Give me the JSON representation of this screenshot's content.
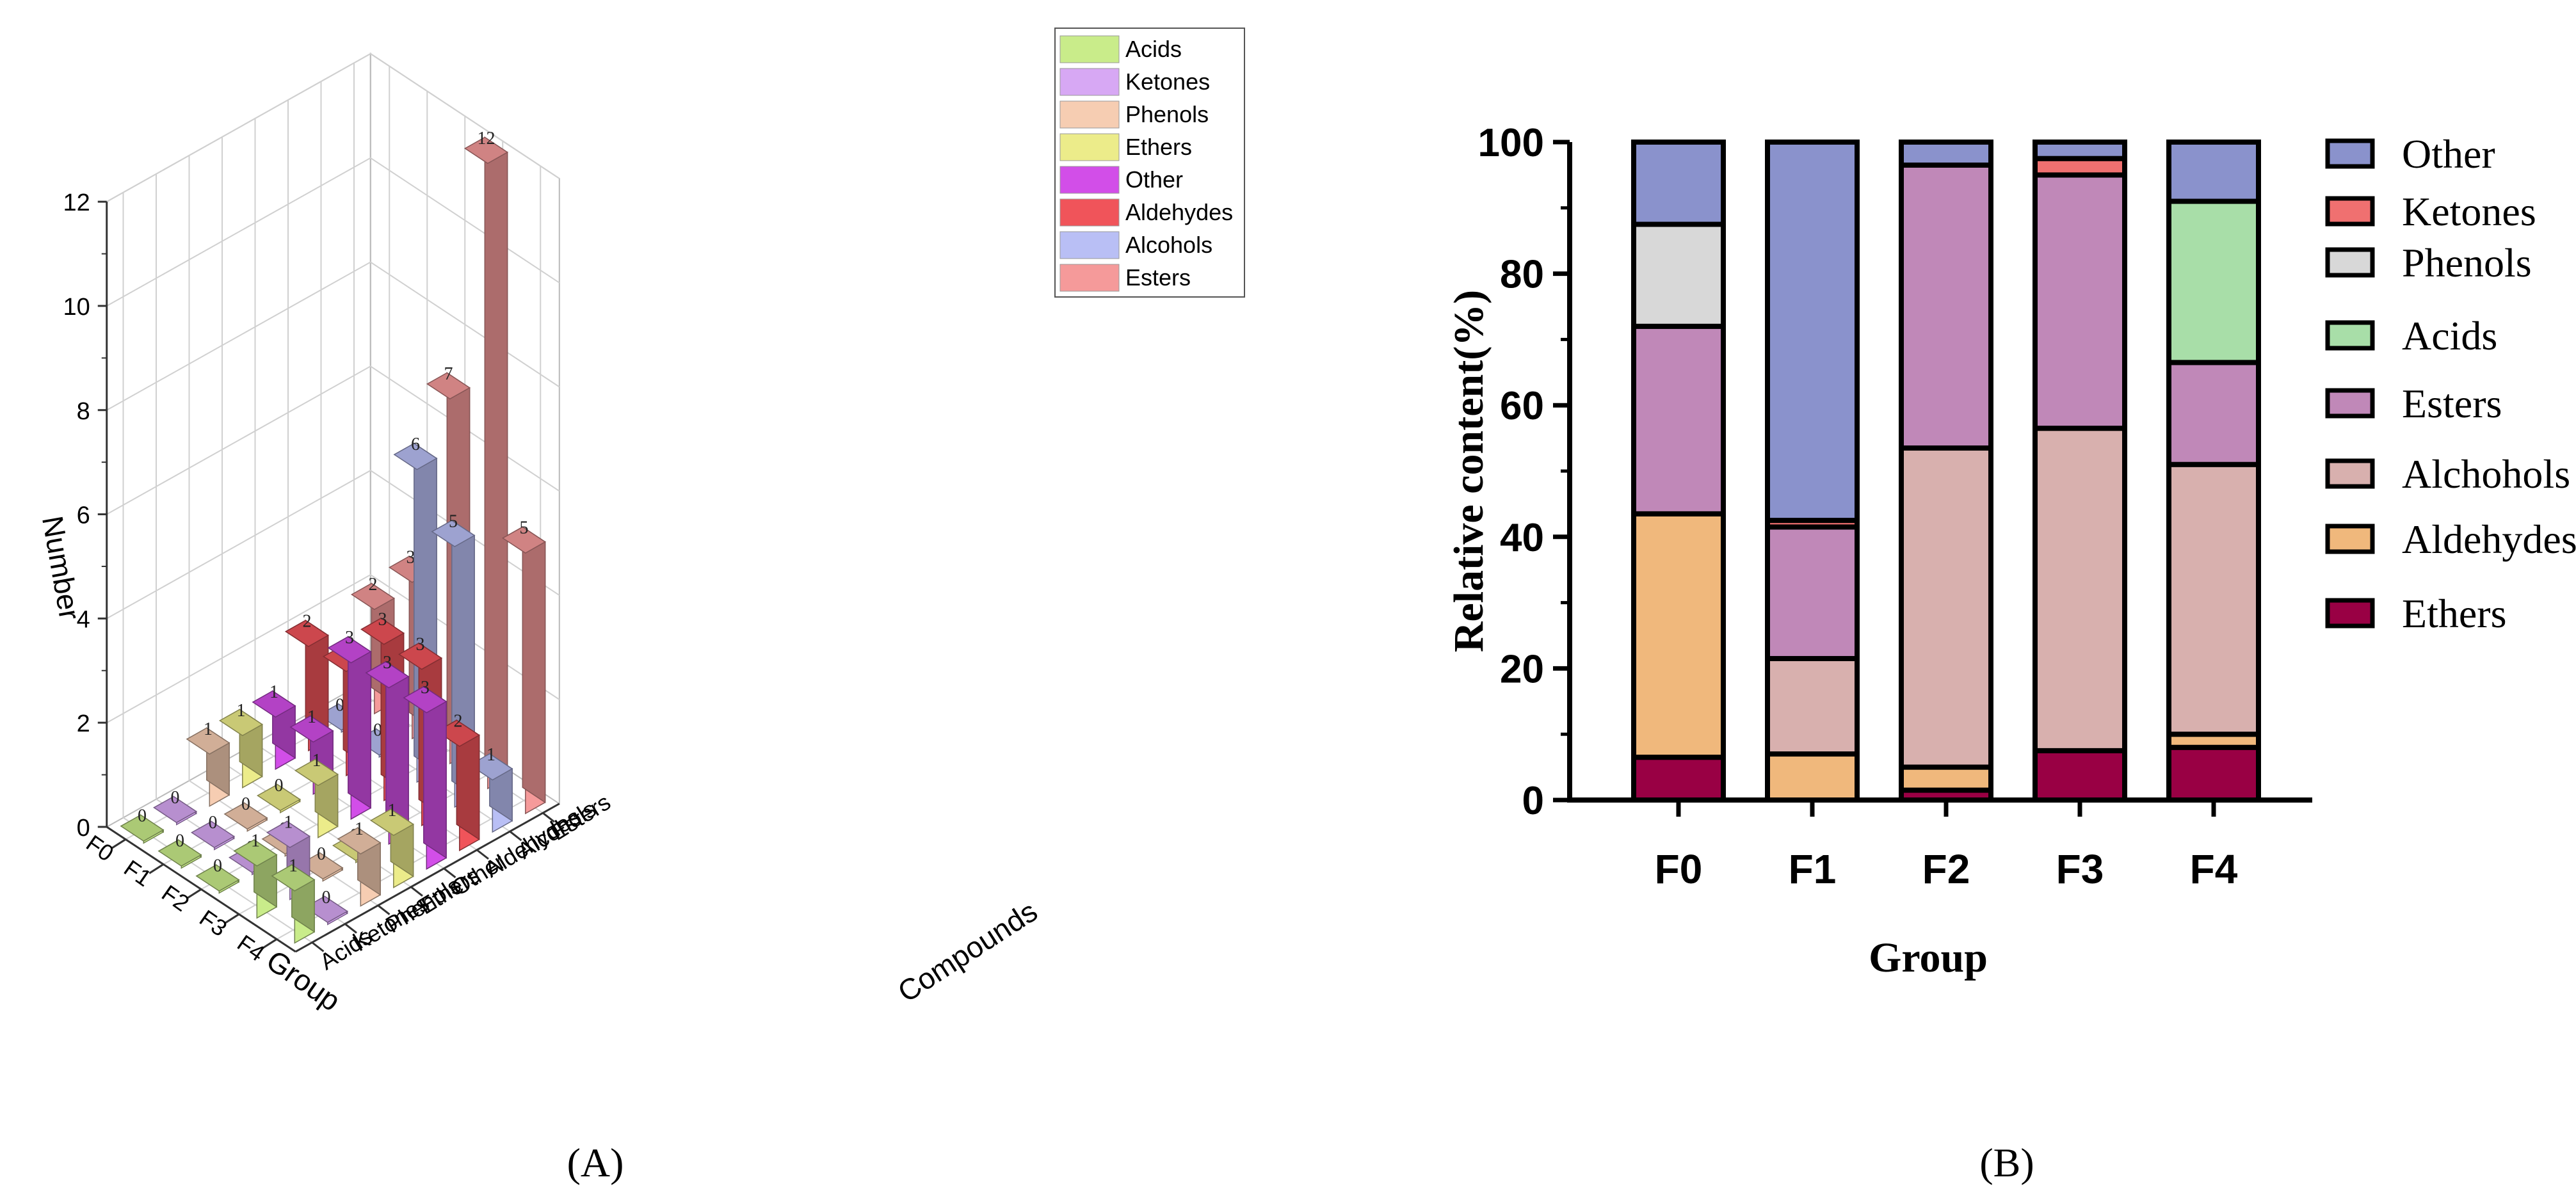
{
  "panel_a_label": "(A)",
  "panel_b_label": "(B)",
  "chart_data": [
    {
      "type": "bar",
      "subtype": "3d-bar",
      "title": "",
      "xlabel": "Group",
      "ylabel": "Compounds",
      "zlabel": "Number",
      "groups": [
        "F0",
        "F1",
        "F2",
        "F3",
        "F4"
      ],
      "compounds": [
        "Acids",
        "Ketones",
        "Phenols",
        "Ethers",
        "Other",
        "Aldehydes",
        "Alcohols",
        "Esters"
      ],
      "zlim": [
        0,
        12
      ],
      "zticks": [
        "0",
        "2",
        "4",
        "6",
        "8",
        "10",
        "12"
      ],
      "legend": [
        "Acids",
        "Ketones",
        "Phenols",
        "Ethers",
        "Other",
        "Aldehydes",
        "Alcohols",
        "Esters"
      ],
      "legend_position": "top-right",
      "colors": {
        "Acids": "#c9ec8a",
        "Ketones": "#d7a8f4",
        "Phenols": "#f6cdb2",
        "Ethers": "#ecec8a",
        "Other": "#d24ee8",
        "Aldehydes": "#f0545a",
        "Alcohols": "#b9bff5",
        "Esters": "#f59a9a"
      },
      "series": [
        {
          "name": "Acids",
          "values": [
            0,
            0,
            0,
            1,
            1
          ]
        },
        {
          "name": "Ketones",
          "values": [
            0,
            0,
            0,
            1,
            0
          ]
        },
        {
          "name": "Phenols",
          "values": [
            1,
            0,
            0,
            0,
            1
          ]
        },
        {
          "name": "Ethers",
          "values": [
            1,
            0,
            1,
            0,
            1
          ]
        },
        {
          "name": "Other",
          "values": [
            1,
            1,
            3,
            3,
            3
          ]
        },
        {
          "name": "Aldehydes",
          "values": [
            2,
            2,
            3,
            3,
            2
          ]
        },
        {
          "name": "Alcohols",
          "values": [
            0,
            0,
            6,
            5,
            1
          ]
        },
        {
          "name": "Esters",
          "values": [
            2,
            3,
            7,
            12,
            5
          ]
        }
      ]
    },
    {
      "type": "bar",
      "subtype": "stacked",
      "title": "",
      "xlabel": "Group",
      "ylabel": "Relative content(%)",
      "categories": [
        "F0",
        "F1",
        "F2",
        "F3",
        "F4"
      ],
      "ylim": [
        0,
        100
      ],
      "yticks": [
        "0",
        "20",
        "40",
        "60",
        "80",
        "100"
      ],
      "legend": [
        "Other",
        "Ketones",
        "Phenols",
        "Acids",
        "Esters",
        "Alchohols",
        "Aldehydes",
        "Ethers"
      ],
      "legend_position": "right",
      "colors": {
        "Ethers": "#990044",
        "Aldehydes": "#f0b87c",
        "Alchohols": "#d8b0ae",
        "Esters": "#c088b8",
        "Acids": "#a8dea8",
        "Phenols": "#d8d8d8",
        "Ketones": "#f07070",
        "Other": "#8a92cc"
      },
      "series": [
        {
          "name": "Ethers",
          "values": [
            6.5,
            0,
            1.5,
            7.5,
            8
          ]
        },
        {
          "name": "Aldehydes",
          "values": [
            37,
            7,
            3.5,
            0,
            2
          ]
        },
        {
          "name": "Alchohols",
          "values": [
            0,
            14.5,
            48.5,
            49,
            41
          ]
        },
        {
          "name": "Esters",
          "values": [
            28.5,
            20,
            43,
            38.5,
            15.5
          ]
        },
        {
          "name": "Acids",
          "values": [
            0,
            0,
            0,
            0,
            24.5
          ]
        },
        {
          "name": "Phenols",
          "values": [
            15.5,
            0,
            0,
            0,
            0
          ]
        },
        {
          "name": "Ketones",
          "values": [
            0,
            1,
            0,
            2.5,
            0
          ]
        },
        {
          "name": "Other",
          "values": [
            12.5,
            57.5,
            3.5,
            2.5,
            9
          ]
        }
      ]
    }
  ]
}
